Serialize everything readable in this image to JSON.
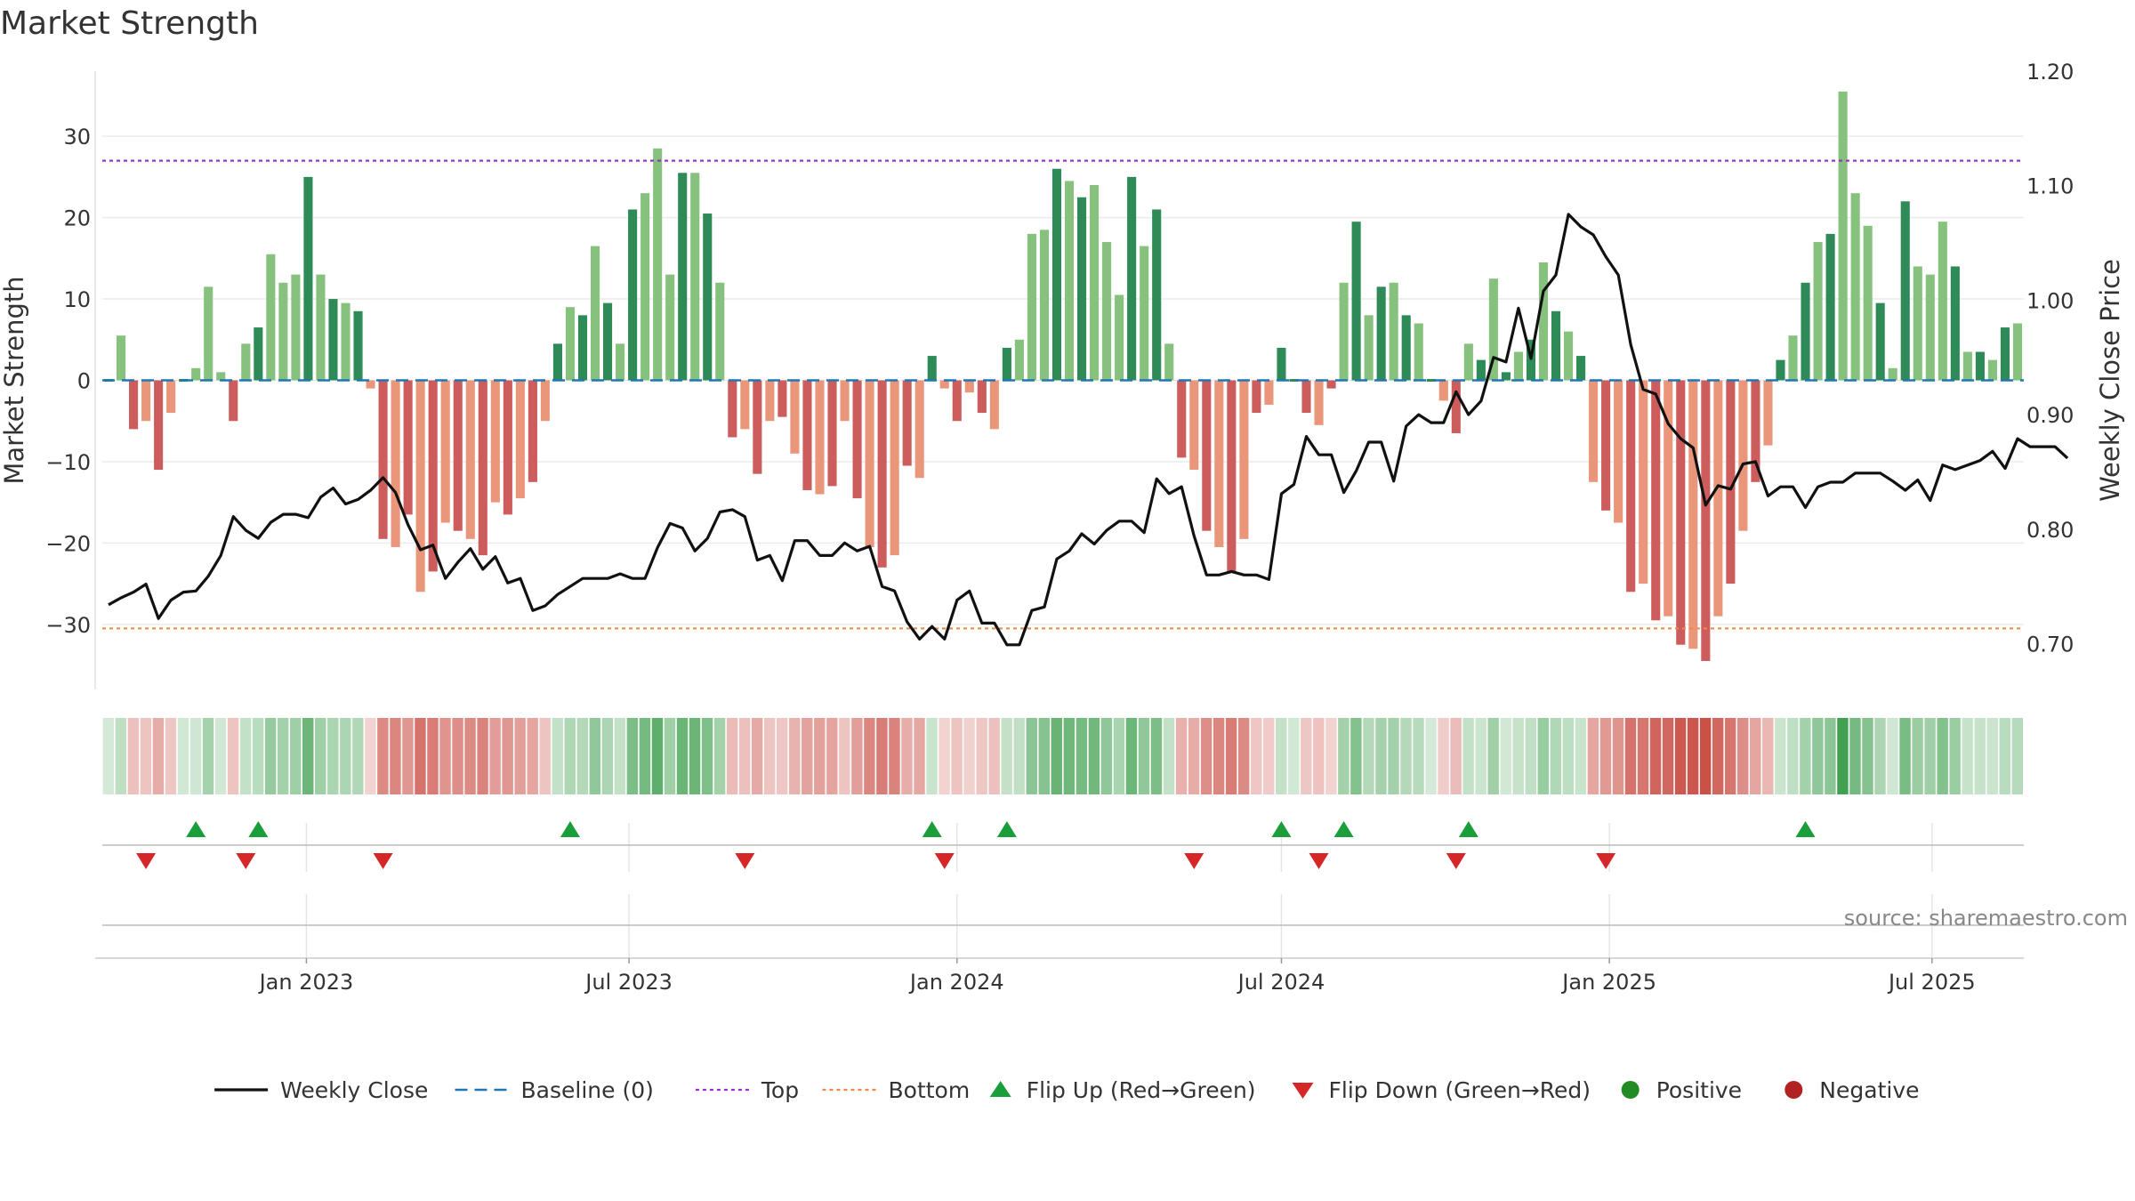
{
  "chart_data": {
    "type": "bar",
    "title": "Market Strength",
    "ylabel_left": "Market Strength",
    "ylabel_right": "Weekly Close Price",
    "ylim_left": [
      -38,
      38
    ],
    "ylim_right": [
      0.66,
      1.2
    ],
    "yticks_left": [
      {
        "value": 30,
        "label": "30"
      },
      {
        "value": 20,
        "label": "20"
      },
      {
        "value": 10,
        "label": "10"
      },
      {
        "value": 0,
        "label": "0"
      },
      {
        "value": -10,
        "label": "−10"
      },
      {
        "value": -20,
        "label": "−20"
      },
      {
        "value": -30,
        "label": "−30"
      }
    ],
    "yticks_right": [
      {
        "value": 1.2,
        "label": "1.20"
      },
      {
        "value": 1.1,
        "label": "1.10"
      },
      {
        "value": 1.0,
        "label": "1.00"
      },
      {
        "value": 0.9,
        "label": "0.90"
      },
      {
        "value": 0.8,
        "label": "0.80"
      },
      {
        "value": 0.7,
        "label": "0.70"
      }
    ],
    "x_start": "2022-09-12",
    "x_step_days": 7,
    "xticks": [
      {
        "date": "2023-01-01",
        "label": "Jan 2023"
      },
      {
        "date": "2023-07-01",
        "label": "Jul 2023"
      },
      {
        "date": "2024-01-01",
        "label": "Jan 2024"
      },
      {
        "date": "2024-07-01",
        "label": "Jul 2024"
      },
      {
        "date": "2025-01-01",
        "label": "Jan 2025"
      },
      {
        "date": "2025-07-01",
        "label": "Jul 2025"
      }
    ],
    "top_line": 27,
    "bottom_line": -30.5,
    "baseline": 0,
    "strength": [
      0,
      5.5,
      -6,
      -5,
      -11,
      -4,
      0.5,
      1.5,
      11.5,
      1,
      -5,
      4.5,
      6.5,
      15.5,
      12,
      13,
      25,
      13,
      10,
      9.5,
      8.5,
      -1,
      -19.5,
      -20.5,
      -16.5,
      -26,
      -23.5,
      -17.5,
      -18.5,
      -19.5,
      -21.5,
      -15,
      -16.5,
      -14.5,
      -12.5,
      -5,
      4.5,
      9,
      8,
      16.5,
      9.5,
      4.5,
      21,
      23,
      28.5,
      13,
      25.5,
      25.5,
      20.5,
      12,
      -7,
      -6,
      -11.5,
      -5,
      -4.5,
      -9,
      -13.5,
      -14,
      -13,
      -5,
      -14.5,
      -20.5,
      -23,
      -21.5,
      -10.5,
      -12,
      3,
      -1,
      -5,
      -1.5,
      -4,
      -6,
      4,
      5,
      18,
      18.5,
      26,
      24.5,
      22.5,
      24,
      17,
      10.5,
      25,
      16.5,
      21,
      4.5,
      -9.5,
      -11,
      -18.5,
      -20.5,
      -23.5,
      -19.5,
      -4,
      -3,
      4,
      0.5,
      -4,
      -5.5,
      -1,
      12,
      19.5,
      8,
      11.5,
      12,
      8,
      7,
      0,
      -2.5,
      -6.5,
      4.5,
      2.5,
      12.5,
      1,
      3.5,
      5,
      14.5,
      8.5,
      6,
      3,
      -12.5,
      -16,
      -17.5,
      -26,
      -25,
      -29.5,
      -29,
      -32.5,
      -33,
      -34.5,
      -29,
      -25,
      -18.5,
      -12.5,
      -8,
      2.5,
      5.5,
      12,
      17,
      18,
      35.5,
      23,
      19,
      9.5,
      1.5,
      22,
      14,
      13,
      19.5,
      14,
      3.5,
      3.5,
      2.5,
      6.5,
      7
    ],
    "weekly_close": [
      0.734,
      0.74,
      0.745,
      0.752,
      0.722,
      0.738,
      0.745,
      0.746,
      0.759,
      0.777,
      0.811,
      0.799,
      0.792,
      0.806,
      0.813,
      0.813,
      0.81,
      0.828,
      0.836,
      0.822,
      0.826,
      0.834,
      0.845,
      0.832,
      0.804,
      0.782,
      0.786,
      0.757,
      0.771,
      0.783,
      0.765,
      0.776,
      0.753,
      0.757,
      0.729,
      0.733,
      0.743,
      0.75,
      0.757,
      0.757,
      0.757,
      0.761,
      0.757,
      0.757,
      0.784,
      0.805,
      0.801,
      0.781,
      0.792,
      0.815,
      0.817,
      0.811,
      0.773,
      0.777,
      0.755,
      0.79,
      0.79,
      0.777,
      0.777,
      0.788,
      0.781,
      0.785,
      0.75,
      0.746,
      0.719,
      0.704,
      0.715,
      0.704,
      0.738,
      0.746,
      0.718,
      0.718,
      0.699,
      0.699,
      0.729,
      0.732,
      0.774,
      0.781,
      0.796,
      0.787,
      0.799,
      0.807,
      0.807,
      0.797,
      0.844,
      0.831,
      0.837,
      0.794,
      0.76,
      0.76,
      0.763,
      0.76,
      0.76,
      0.756,
      0.831,
      0.839,
      0.881,
      0.865,
      0.865,
      0.832,
      0.851,
      0.876,
      0.876,
      0.842,
      0.89,
      0.9,
      0.893,
      0.893,
      0.92,
      0.9,
      0.912,
      0.95,
      0.946,
      0.993,
      0.949,
      1.008,
      1.022,
      1.075,
      1.064,
      1.057,
      1.038,
      1.022,
      0.961,
      0.922,
      0.918,
      0.892,
      0.879,
      0.871,
      0.821,
      0.838,
      0.835,
      0.857,
      0.859,
      0.829,
      0.837,
      0.837,
      0.819,
      0.837,
      0.841,
      0.841,
      0.849,
      0.849,
      0.849,
      0.842,
      0.834,
      0.843,
      0.825,
      0.856,
      0.852,
      0.856,
      0.86,
      0.868,
      0.853,
      0.879,
      0.872,
      0.872,
      0.872,
      0.862
    ],
    "flip_up_weeks": [
      7,
      12,
      37,
      66,
      72,
      94,
      99,
      109,
      136
    ],
    "flip_down_weeks": [
      3,
      11,
      22,
      51,
      67,
      87,
      97,
      108,
      120
    ],
    "legend": [
      {
        "key": "weekly_close",
        "label": "Weekly Close",
        "color": "#111111",
        "style": "solid-line"
      },
      {
        "key": "baseline",
        "label": "Baseline (0)",
        "color": "#1f77b4",
        "style": "dashed-line"
      },
      {
        "key": "top",
        "label": "Top",
        "color": "#9933cc",
        "style": "dotted-line"
      },
      {
        "key": "bottom",
        "label": "Bottom",
        "color": "#f0884a",
        "style": "dotted-line"
      },
      {
        "key": "flip_up",
        "label": "Flip Up (Red→Green)",
        "color": "#1a9e3a",
        "style": "triangle-up"
      },
      {
        "key": "flip_down",
        "label": "Flip Down (Green→Red)",
        "color": "#d62728",
        "style": "triangle-down"
      },
      {
        "key": "positive",
        "label": "Positive",
        "color": "#228b22",
        "style": "circle"
      },
      {
        "key": "negative",
        "label": "Negative",
        "color": "#b22222",
        "style": "circle"
      }
    ],
    "legend_placement": "bottom-center",
    "grid": true,
    "source_note": "source: sharemaestro.com",
    "colors": {
      "pos_strong": "#2e8b57",
      "pos_light": "#86c17e",
      "neg_strong": "#cd5c5c",
      "neg_light": "#e9967a",
      "heat_pos": "#3a9d4a",
      "heat_neg": "#c8463c"
    }
  }
}
